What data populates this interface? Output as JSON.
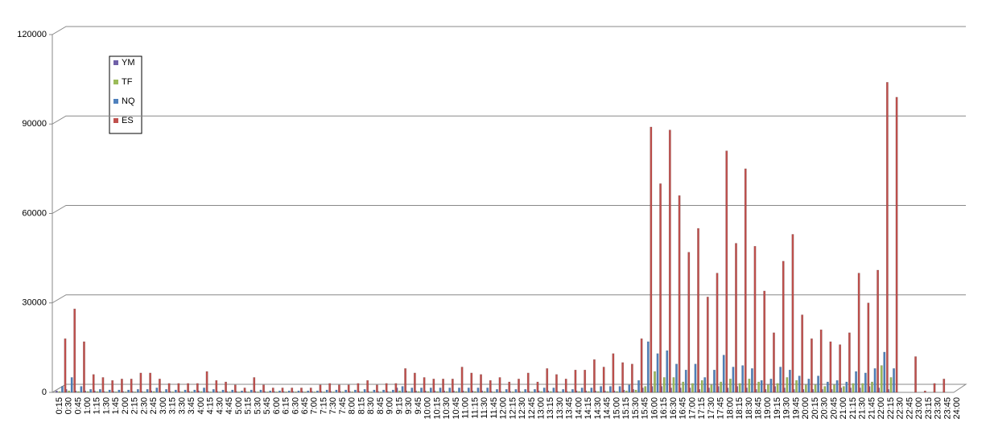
{
  "chart_data": {
    "type": "bar",
    "categories": [
      "0:15",
      "0:30",
      "0:45",
      "1:00",
      "1:15",
      "1:30",
      "1:45",
      "2:00",
      "2:15",
      "2:30",
      "2:45",
      "3:00",
      "3:15",
      "3:30",
      "3:45",
      "4:00",
      "4:15",
      "4:30",
      "4:45",
      "5:00",
      "5:15",
      "5:30",
      "5:45",
      "6:00",
      "6:15",
      "6:30",
      "6:45",
      "7:00",
      "7:15",
      "7:30",
      "7:45",
      "8:00",
      "8:15",
      "8:30",
      "8:45",
      "9:00",
      "9:15",
      "9:30",
      "9:45",
      "10:00",
      "10:15",
      "10:30",
      "10:45",
      "11:00",
      "11:15",
      "11:30",
      "11:45",
      "12:00",
      "12:15",
      "12:30",
      "12:45",
      "13:00",
      "13:15",
      "13:30",
      "13:45",
      "14:00",
      "14:15",
      "14:30",
      "14:45",
      "15:00",
      "15:15",
      "15:30",
      "15:45",
      "16:00",
      "16:15",
      "16:30",
      "16:45",
      "17:00",
      "17:15",
      "17:30",
      "17:45",
      "18:00",
      "18:15",
      "18:30",
      "18:45",
      "19:00",
      "19:15",
      "19:30",
      "19:45",
      "20:00",
      "20:15",
      "20:30",
      "20:45",
      "21:00",
      "21:15",
      "21:30",
      "21:45",
      "22:00",
      "22:15",
      "22:30",
      "22:45",
      "23:00",
      "23:15",
      "23:30",
      "23:45",
      "24:00"
    ],
    "series": [
      {
        "name": "YM",
        "color": "#7060a8",
        "values": [
          500,
          1000,
          500,
          500,
          500,
          300,
          300,
          300,
          300,
          300,
          500,
          300,
          300,
          300,
          300,
          500,
          300,
          300,
          300,
          300,
          300,
          300,
          300,
          300,
          300,
          300,
          300,
          300,
          300,
          300,
          300,
          300,
          300,
          300,
          300,
          300,
          1500,
          500,
          500,
          500,
          500,
          500,
          500,
          500,
          500,
          500,
          300,
          300,
          300,
          300,
          300,
          500,
          500,
          300,
          300,
          500,
          500,
          500,
          500,
          500,
          800,
          1000,
          1500,
          2000,
          2000,
          1500,
          1500,
          1500,
          1000,
          1500,
          2000,
          1500,
          2000,
          1500,
          1000,
          1000,
          2000,
          1500,
          1000,
          1000,
          1000,
          1000,
          1000,
          1500,
          1500,
          1500,
          2000,
          1500,
          1000,
          0,
          0,
          0,
          0,
          0,
          0,
          0
        ]
      },
      {
        "name": "TF",
        "color": "#9bbb59",
        "values": [
          300,
          500,
          300,
          300,
          300,
          200,
          200,
          200,
          200,
          200,
          300,
          200,
          200,
          200,
          200,
          300,
          200,
          200,
          200,
          200,
          200,
          200,
          200,
          200,
          200,
          200,
          200,
          200,
          200,
          200,
          200,
          200,
          200,
          200,
          200,
          200,
          500,
          300,
          300,
          300,
          300,
          300,
          300,
          300,
          300,
          300,
          200,
          200,
          200,
          200,
          200,
          300,
          300,
          200,
          200,
          300,
          300,
          300,
          300,
          300,
          500,
          800,
          2000,
          7000,
          5000,
          5000,
          3500,
          3000,
          4000,
          2500,
          3500,
          4500,
          3000,
          4500,
          3500,
          2500,
          3000,
          5000,
          4000,
          2500,
          2500,
          2000,
          2500,
          2000,
          3000,
          3000,
          3500,
          9000,
          5000,
          0,
          0,
          0,
          0,
          0,
          0,
          0
        ]
      },
      {
        "name": "NQ",
        "color": "#4f81bd",
        "values": [
          2000,
          5000,
          2000,
          1000,
          1000,
          800,
          800,
          800,
          1000,
          1000,
          1500,
          1000,
          800,
          800,
          800,
          1500,
          1000,
          800,
          800,
          500,
          800,
          800,
          500,
          500,
          500,
          500,
          500,
          500,
          800,
          800,
          800,
          800,
          1000,
          800,
          800,
          800,
          2000,
          1500,
          1500,
          1500,
          1500,
          1500,
          1500,
          1500,
          1500,
          1500,
          1000,
          1000,
          1000,
          1000,
          1000,
          1500,
          1500,
          1000,
          1000,
          1500,
          1500,
          2000,
          2000,
          2000,
          2500,
          4000,
          17000,
          13000,
          14000,
          9500,
          7500,
          9500,
          5000,
          7500,
          12500,
          8500,
          9000,
          8000,
          4000,
          4500,
          8500,
          7500,
          5500,
          4500,
          5500,
          3500,
          4000,
          3500,
          7000,
          6500,
          8000,
          13500,
          8000,
          0,
          0,
          0,
          0,
          0,
          0,
          0
        ]
      },
      {
        "name": "ES",
        "color": "#c0504d",
        "values": [
          18000,
          28000,
          17000,
          6000,
          5000,
          4000,
          4500,
          4500,
          6500,
          6500,
          4500,
          3000,
          3000,
          3000,
          3000,
          7000,
          4000,
          3500,
          2500,
          1500,
          5000,
          2500,
          1500,
          1500,
          1500,
          1500,
          1500,
          2500,
          3000,
          2500,
          2500,
          3000,
          4000,
          2500,
          3000,
          3000,
          8000,
          6500,
          5000,
          4500,
          4500,
          4500,
          8500,
          6500,
          6000,
          4000,
          5000,
          3500,
          4500,
          6500,
          3500,
          8000,
          6000,
          4500,
          7500,
          7500,
          11000,
          8500,
          13000,
          10000,
          9500,
          18000,
          89000,
          70000,
          88000,
          66000,
          47000,
          55000,
          32000,
          40000,
          81000,
          50000,
          75000,
          49000,
          34000,
          20000,
          44000,
          53000,
          26000,
          18000,
          21000,
          17000,
          16000,
          20000,
          40000,
          30000,
          41000,
          104000,
          99000,
          0,
          12000,
          500,
          3000,
          4500,
          0,
          0
        ]
      }
    ],
    "ylim": [
      0,
      120000
    ],
    "yticks": [
      0,
      30000,
      60000,
      90000,
      120000
    ],
    "grid": true,
    "legend": "top-left"
  }
}
